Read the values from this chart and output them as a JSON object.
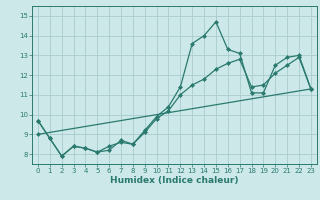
{
  "title": "",
  "xlabel": "Humidex (Indice chaleur)",
  "ylabel": "",
  "xlim": [
    -0.5,
    23.5
  ],
  "ylim": [
    7.5,
    15.5
  ],
  "yticks": [
    8,
    9,
    10,
    11,
    12,
    13,
    14,
    15
  ],
  "xticks": [
    0,
    1,
    2,
    3,
    4,
    5,
    6,
    7,
    8,
    9,
    10,
    11,
    12,
    13,
    14,
    15,
    16,
    17,
    18,
    19,
    20,
    21,
    22,
    23
  ],
  "bg_color": "#cce8e8",
  "grid_color": "#aacccc",
  "line_color": "#2a7a6f",
  "series1_x": [
    0,
    1,
    2,
    3,
    4,
    5,
    6,
    7,
    8,
    9,
    10,
    11,
    12,
    13,
    14,
    15,
    16,
    17,
    18,
    19,
    20,
    21,
    22,
    23
  ],
  "series1_y": [
    9.7,
    8.8,
    7.9,
    8.4,
    8.3,
    8.1,
    8.2,
    8.7,
    8.5,
    9.2,
    9.9,
    10.4,
    11.4,
    13.6,
    14.0,
    14.7,
    13.3,
    13.1,
    11.1,
    11.1,
    12.5,
    12.9,
    13.0,
    11.3
  ],
  "series2_x": [
    0,
    1,
    2,
    3,
    4,
    5,
    6,
    7,
    8,
    9,
    10,
    11,
    12,
    13,
    14,
    15,
    16,
    17,
    18,
    19,
    20,
    21,
    22,
    23
  ],
  "series2_y": [
    9.7,
    8.8,
    7.9,
    8.4,
    8.3,
    8.1,
    8.4,
    8.6,
    8.5,
    9.1,
    9.8,
    10.2,
    11.0,
    11.5,
    11.8,
    12.3,
    12.6,
    12.8,
    11.4,
    11.5,
    12.1,
    12.5,
    12.9,
    11.3
  ],
  "series3_x": [
    0,
    23
  ],
  "series3_y": [
    9.0,
    11.3
  ],
  "marker": "D",
  "marker_size": 2,
  "linewidth": 0.9,
  "tick_fontsize": 5.0,
  "xlabel_fontsize": 6.5
}
